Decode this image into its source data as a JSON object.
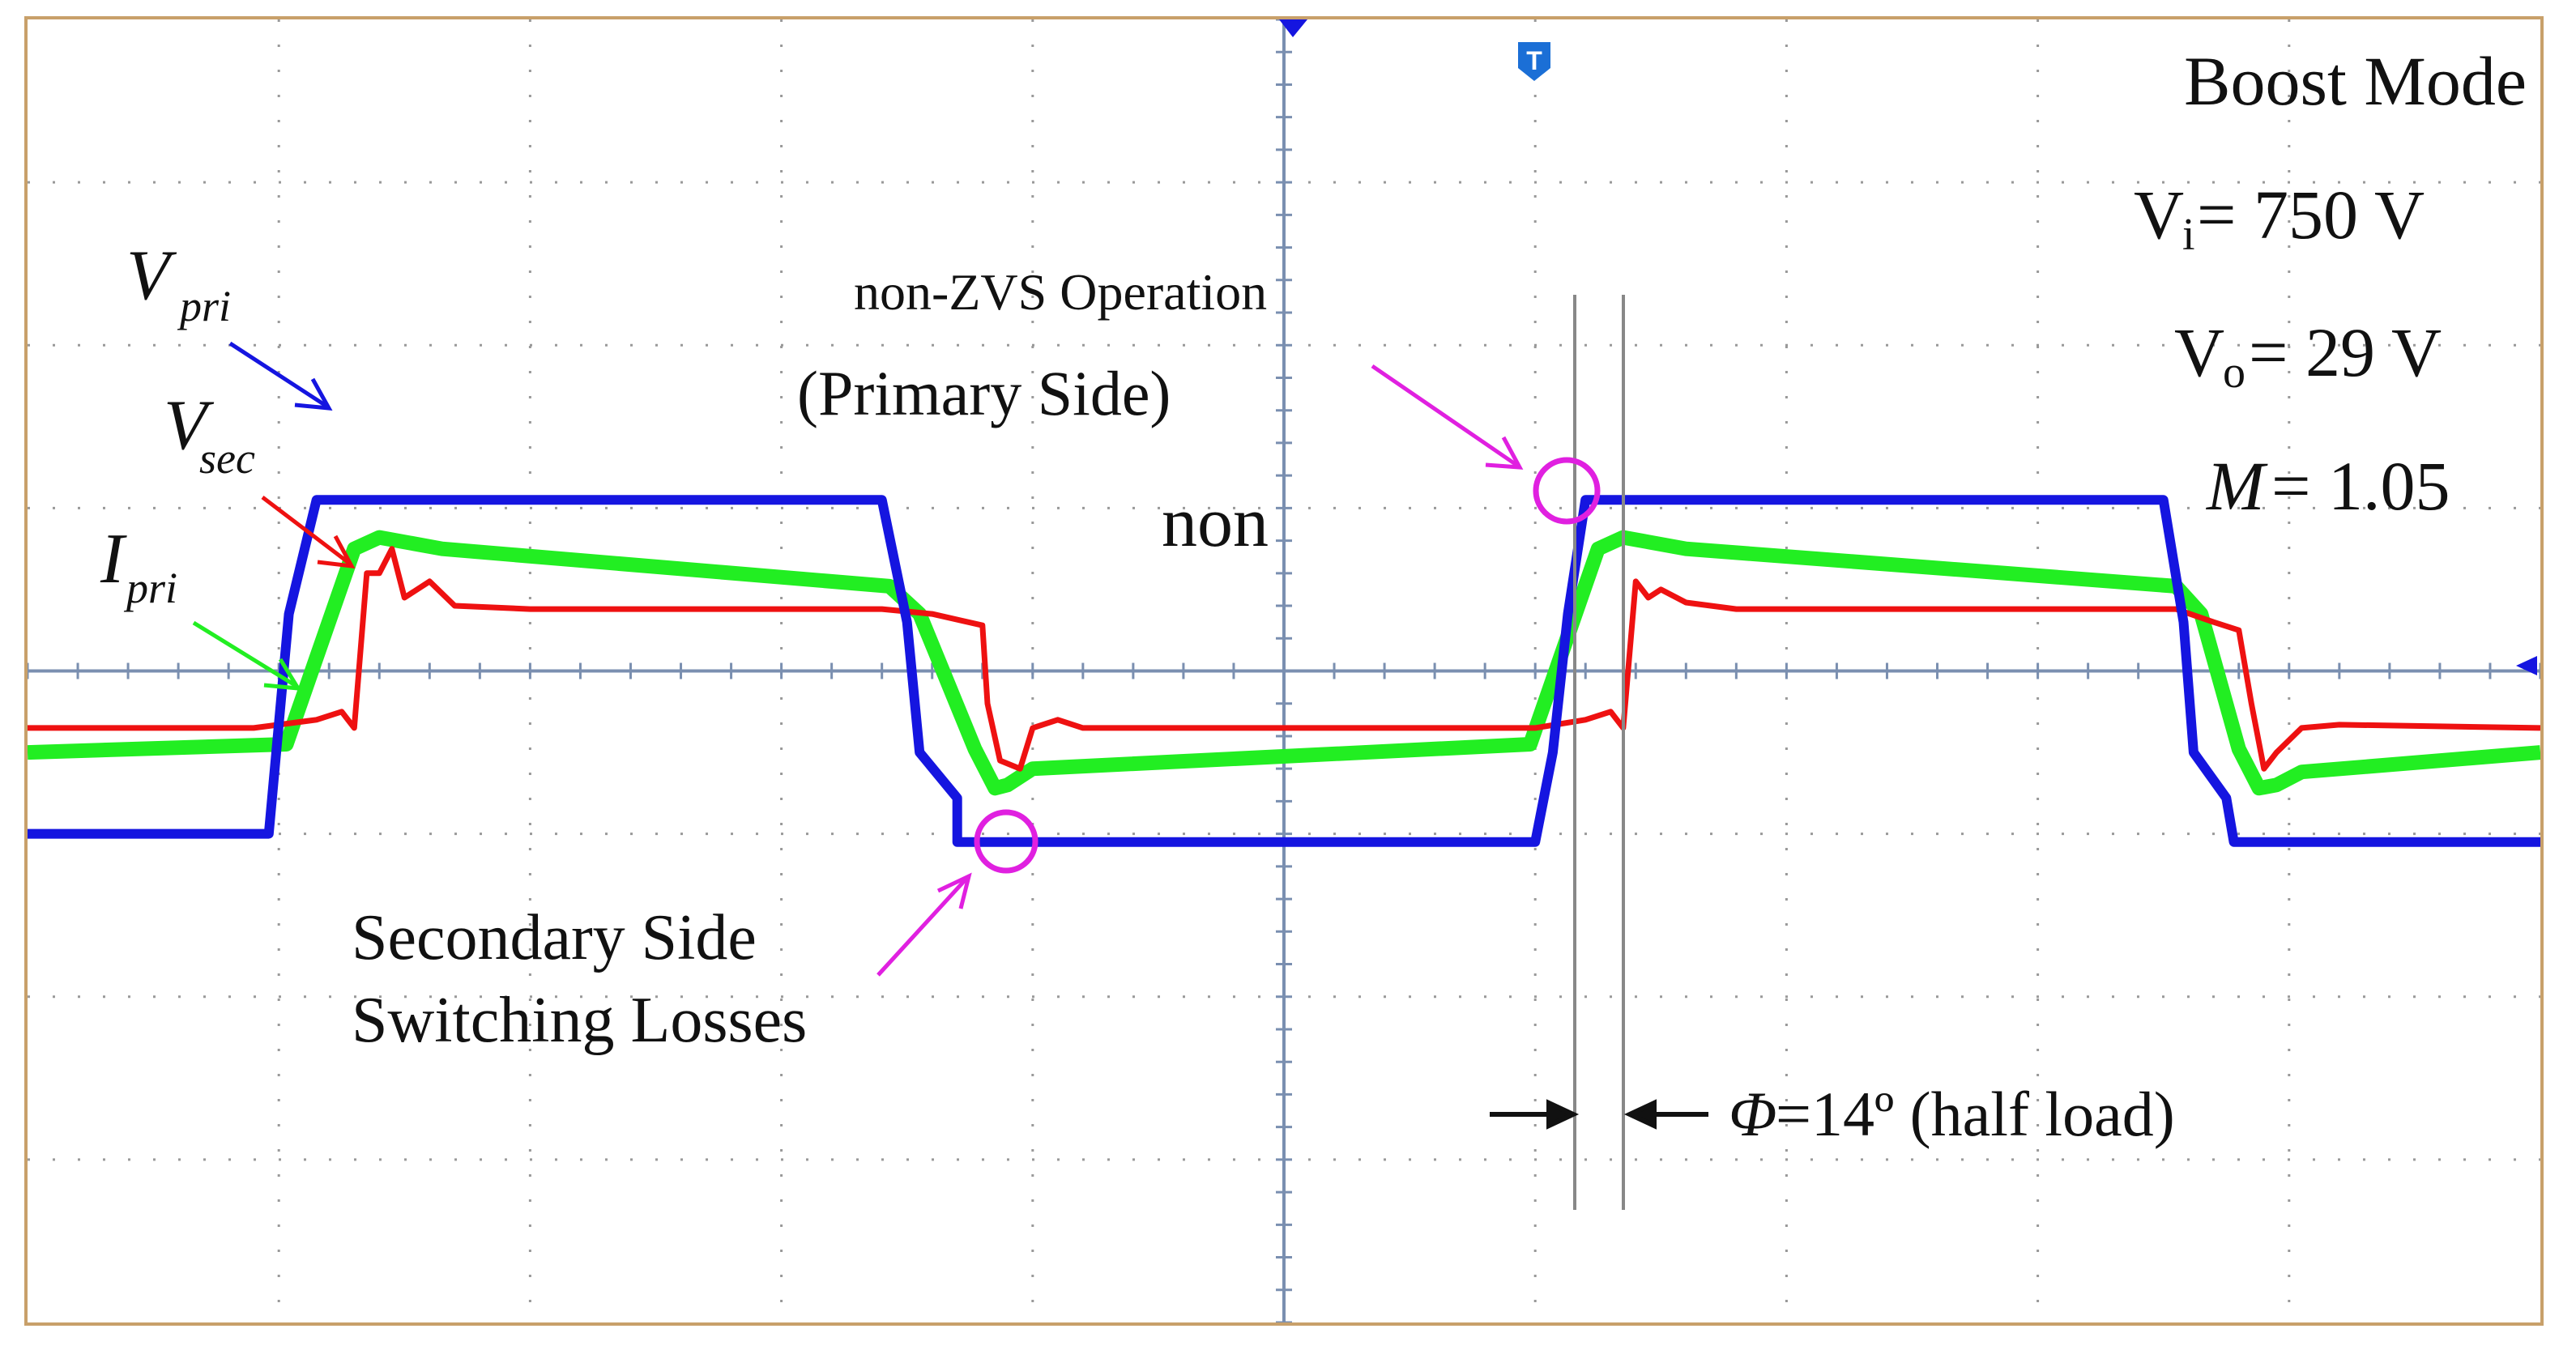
{
  "annotations": {
    "mode": "Boost  Mode",
    "vi": "V",
    "vi_sub": "i",
    "vi_val": " = 750 V",
    "vo": "V",
    "vo_sub": "o",
    "vo_val": "= 29 V",
    "m": "M",
    "m_val": "= 1.05",
    "nonzvs_line1": "non-ZVS Operation",
    "nonzvs_line2": "(Primary Side)",
    "non": "non",
    "secondary_line1": "Secondary Side",
    "secondary_line2": "Switching Losses",
    "phi": "Φ",
    "phi_val": " =14º (half load)",
    "trigger_marker": "T"
  },
  "colors": {
    "vpri": "#1515e0",
    "vsec": "#ee1111",
    "ipri": "#22ee22",
    "circle": "#e020e0",
    "grid": "#999999",
    "border": "#c8a06a"
  },
  "chart_data": {
    "type": "line",
    "title": "",
    "xlim": [
      -5,
      5
    ],
    "ylim": [
      -4,
      4
    ],
    "grid": true,
    "x_divisions": 10,
    "y_divisions": 8,
    "series": [
      {
        "name": "Vpri",
        "label_main": "V",
        "label_sub": "pri",
        "points": [
          [
            -5,
            -1.0
          ],
          [
            -4.04,
            -1.0
          ],
          [
            -3.96,
            0.35
          ],
          [
            -3.85,
            1.05
          ],
          [
            -1.6,
            1.05
          ],
          [
            -1.5,
            0.3
          ],
          [
            -1.45,
            -0.5
          ],
          [
            -1.3,
            -0.78
          ],
          [
            -1.3,
            -1.05
          ],
          [
            1.0,
            -1.05
          ],
          [
            1.07,
            -0.5
          ],
          [
            1.13,
            0.35
          ],
          [
            1.2,
            1.05
          ],
          [
            3.5,
            1.05
          ],
          [
            3.58,
            0.3
          ],
          [
            3.62,
            -0.5
          ],
          [
            3.75,
            -0.78
          ],
          [
            3.78,
            -1.05
          ],
          [
            5,
            -1.05
          ]
        ]
      },
      {
        "name": "Vsec",
        "label_main": "V",
        "label_sub": "sec",
        "points": [
          [
            -5,
            -0.35
          ],
          [
            -4.1,
            -0.35
          ],
          [
            -3.85,
            -0.3
          ],
          [
            -3.75,
            -0.25
          ],
          [
            -3.7,
            -0.35
          ],
          [
            -3.65,
            0.6
          ],
          [
            -3.6,
            0.6
          ],
          [
            -3.55,
            0.75
          ],
          [
            -3.5,
            0.45
          ],
          [
            -3.4,
            0.55
          ],
          [
            -3.3,
            0.4
          ],
          [
            -3.0,
            0.38
          ],
          [
            -1.6,
            0.38
          ],
          [
            -1.4,
            0.35
          ],
          [
            -1.2,
            0.28
          ],
          [
            -1.18,
            -0.2
          ],
          [
            -1.13,
            -0.55
          ],
          [
            -1.05,
            -0.6
          ],
          [
            -1.0,
            -0.35
          ],
          [
            -0.9,
            -0.3
          ],
          [
            -0.8,
            -0.35
          ],
          [
            1.0,
            -0.35
          ],
          [
            1.2,
            -0.3
          ],
          [
            1.3,
            -0.25
          ],
          [
            1.35,
            -0.35
          ],
          [
            1.4,
            0.55
          ],
          [
            1.45,
            0.45
          ],
          [
            1.5,
            0.5
          ],
          [
            1.6,
            0.42
          ],
          [
            1.8,
            0.38
          ],
          [
            3.55,
            0.38
          ],
          [
            3.7,
            0.3
          ],
          [
            3.8,
            0.25
          ],
          [
            3.85,
            -0.2
          ],
          [
            3.9,
            -0.6
          ],
          [
            3.95,
            -0.5
          ],
          [
            4.05,
            -0.35
          ],
          [
            4.2,
            -0.33
          ],
          [
            5,
            -0.35
          ]
        ]
      },
      {
        "name": "Ipri",
        "label_main": "I",
        "label_sub": "pri",
        "points": [
          [
            -5,
            -0.5
          ],
          [
            -3.97,
            -0.45
          ],
          [
            -3.7,
            0.75
          ],
          [
            -3.6,
            0.82
          ],
          [
            -3.35,
            0.75
          ],
          [
            -1.57,
            0.52
          ],
          [
            -1.45,
            0.35
          ],
          [
            -1.23,
            -0.48
          ],
          [
            -1.15,
            -0.72
          ],
          [
            -1.1,
            -0.7
          ],
          [
            -1.0,
            -0.6
          ],
          [
            0.98,
            -0.45
          ],
          [
            1.25,
            0.75
          ],
          [
            1.35,
            0.82
          ],
          [
            1.6,
            0.75
          ],
          [
            3.55,
            0.52
          ],
          [
            3.65,
            0.35
          ],
          [
            3.8,
            -0.48
          ],
          [
            3.88,
            -0.72
          ],
          [
            3.95,
            -0.7
          ],
          [
            4.05,
            -0.62
          ],
          [
            5,
            -0.5
          ]
        ]
      }
    ]
  }
}
